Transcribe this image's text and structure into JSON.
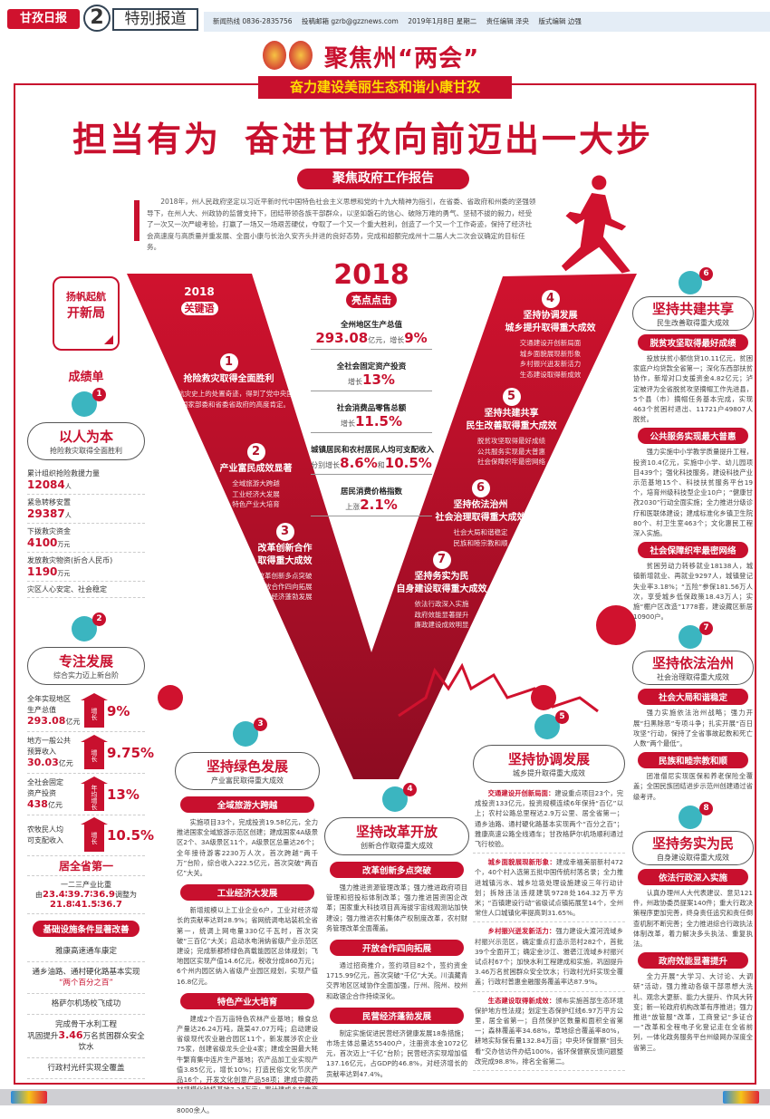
{
  "header": {
    "logo": "甘孜日报",
    "page_number": "2",
    "section": "特别报道",
    "hotline": "新闻热线 0836-2835756",
    "email": "投稿邮箱 gzrb@gzznews.com",
    "date": "2019年1月8日 星期二",
    "editor": "责任编辑 泽央",
    "layout_editor": "版式编辑 边强"
  },
  "masthead": {
    "title": "聚焦州“两会”",
    "subtitle": "奋力建设美丽生态和谐小康甘孜"
  },
  "headline": {
    "part1": "担当有为",
    "part2": "奋进甘孜向前迈出一大步"
  },
  "report": {
    "label": "聚焦政府工作报告",
    "intro": "2018年，州人民政府坚定以习近平新时代中国特色社会主义思想和党的十九大精神为指引，在省委、省政府和州委的坚强领导下，在州人大、州政协的监督支持下，团结带领各族干部群众，以坚如磐石的信心、破除万难的勇气、坚韧不拔的毅力，经受了一次又一次严峻考验，打赢了一场又一场艰苦硬仗，夺取了一个又一个重大胜利，创造了一个又一个工作奇迹，保持了经济社会高速度与高质量并重发展、全面小康与长治久安齐头并进的良好态势，完成和超额完成州十二届人大二次会议确定的目标任务。"
  },
  "keywords": {
    "year": "2018",
    "label": "关键语",
    "items": [
      {
        "num": "1",
        "title": "抢险救灾取得全面胜利",
        "desc": "创造了抗灾史上的处置奇迹，得到了党中央国务院、国家部委和省委省政府的高度肯定。"
      },
      {
        "num": "2",
        "title": "产业富民成效显著",
        "desc": "全域旅游大跨越\n工业经济大发展\n特色产业大培育"
      },
      {
        "num": "3",
        "title": "改革创新合作\n取得重大成效",
        "desc": "改革创新多点突破\n开放合作四向拓展\n民营经济蓬勃发展"
      },
      {
        "num": "4",
        "title": "坚持协调发展\n城乡提升取得重大成效",
        "desc": "交通建设开创新局面\n城乡面貌展现新形象\n乡村振兴迸发新活力\n生态建设取得新成效"
      },
      {
        "num": "5",
        "title": "坚持共建共享\n民生改善取得重大成效",
        "desc": "脱贫攻坚取得最好成绩\n公共服务实现最大普惠\n社会保障织牢最密网络"
      },
      {
        "num": "6",
        "title": "坚持依法治州\n社会治理取得重大成效",
        "desc": "社会大局和谐稳定\n民族和睦宗教和顺"
      },
      {
        "num": "7",
        "title": "坚持务实为民\n自身建设取得重大成效",
        "desc": "依法行政深入实施\n政府效能显著提升\n廉政建设成效明显"
      }
    ]
  },
  "highlights": {
    "year": "2018",
    "label": "亮点点击",
    "items": [
      {
        "label": "全州地区生产总值",
        "pre": "",
        "v1": "293.08",
        "mid": "亿元，增长",
        "v2": "9%"
      },
      {
        "label": "全社会固定资产投资",
        "pre": "增长",
        "v1": "13%",
        "mid": "",
        "v2": ""
      },
      {
        "label": "社会消费品零售总额",
        "pre": "增长",
        "v1": "11.5%",
        "mid": "",
        "v2": ""
      },
      {
        "label": "城镇居民和农村居民人均可支配收入",
        "pre": "分别增长",
        "v1": "8.6%",
        "mid": "和",
        "v2": "10.5%"
      },
      {
        "label": "居民消费价格指数",
        "pre": "上涨",
        "v1": "2.1%",
        "mid": "",
        "v2": ""
      }
    ]
  },
  "left": {
    "launch_l1": "扬帆起航",
    "launch_l2": "开新局",
    "achievements": "成绩单",
    "block1": {
      "badge": "1",
      "title": "以人为本",
      "subtitle": "抢险救灾取得全面胜利",
      "stats": [
        {
          "label": "累计组织抢险救援力量",
          "value": "12084",
          "unit": "人"
        },
        {
          "label": "紧急转移安置",
          "value": "29387",
          "unit": "人"
        },
        {
          "label": "下拨救灾资金",
          "value": "4100",
          "unit": "万元"
        },
        {
          "label": "发放救灾物资(折合人民币)",
          "value": "1190",
          "unit": "万元"
        },
        {
          "label": "灾区人心安定、社会稳定",
          "value": "",
          "unit": ""
        }
      ]
    },
    "block2": {
      "badge": "2",
      "title": "专注发展",
      "subtitle": "综合实力迈上新台阶",
      "growth": [
        {
          "l1": "全年实现地区",
          "l2": "生产总值",
          "value": "293.08",
          "unit": "亿元",
          "arrow": "增长",
          "pct": "9%"
        },
        {
          "l1": "地方一般公共",
          "l2": "预算收入",
          "value": "30.03",
          "unit": "亿元",
          "arrow": "增长",
          "pct": "9.75%"
        },
        {
          "l1": "全社会固定",
          "l2": "资产投资",
          "value": "438",
          "unit": "亿元",
          "arrow": "年均增长",
          "pct": "13%"
        },
        {
          "l1": "农牧民人均",
          "l2": "可支配收入",
          "value": "",
          "unit": "",
          "arrow": "增长",
          "pct": "10.5%"
        }
      ],
      "rank": "居全省第一",
      "ratio_label": "一二三产业比重",
      "ratio_from_pre": "由",
      "ratio_from": "23.4∶39.7∶36.9",
      "ratio_to_pre": "调整为",
      "ratio_to": "21.8∶41.5∶36.7"
    },
    "infra": {
      "heading": "基础设施条件显著改善",
      "items": [
        {
          "text": "雅康高速通车康定"
        },
        {
          "text": "通乡油路、通村硬化路基本实现",
          "quote": "“两个百分之百”"
        },
        {
          "text": "格萨尔机场校飞成功"
        },
        {
          "text": "完成骨干水利工程",
          "pre": "巩固提升",
          "value": "3.46",
          "post": "万名贫困群众安全饮水"
        },
        {
          "text": "行政村光纤实现全覆盖"
        }
      ]
    }
  },
  "sections": [
    {
      "id": "s3",
      "badge": "3",
      "title": "坚持绿色发展",
      "subtitle": "产业富民取得重大成效",
      "subs": [
        {
          "heading": "全域旅游大跨越",
          "text": "实施项目33个，完成投资19.58亿元，全力推进国家全域旅游示范区创建；建成国家4A级景区2个、3A级景区11个，A级景区总量达26个；全年接待游客2230万人次，首次跨越“两千万”台阶，综合收入222.5亿元，首次突破“两百亿”大关。"
        },
        {
          "heading": "工业经济大发展",
          "text": "新增规模以上工业企业6户，工业对经济增长的贡献率达到28.9%；省网统调电站装机全省第一，统调上网电量330亿千瓦时，首次突破“三百亿”大关；启动水电消纳省级产业示范区建设；完成新都桥绿色高载能园区总体规划；飞地园区实现产值14.6亿元，税收分成860万元；6个州内园区纳入省级产业园区规划，实现产值16.8亿元。"
        },
        {
          "heading": "特色产业大培育",
          "text": "建成2个百万亩特色农林产业基地；粮食总产量达26.24万吨，蔬菜47.07万吨；启动建设省级现代农业融合园区11个，新发展涉农企业75家，创建省级龙头企业4家；建成全国最大牦牛繁育集中连片生产基地；农产品加工业实现产值3.85亿元，增长10%；打造民俗文化节庆产品16个，开发文化创意产品58项；建成中藏药材规模化种植基地7.34万亩；累计建成乡村电商物流服务站（点）658个，电商从业人员达8000余人。"
        }
      ]
    },
    {
      "id": "s4",
      "badge": "4",
      "title": "坚持改革开放",
      "subtitle": "创新合作取得重大成效",
      "subs": [
        {
          "heading": "改革创新多点突破",
          "text": "强力推进资源管理改革；强力推进政府项目管理和招投标体制改革；强力推进国资国企改革；国家重大科技项目高海拔宇宙线观测站加快建设；强力推进农村集体产权制度改革，农村财务管理改革全面覆盖。"
        },
        {
          "heading": "开放合作四向拓展",
          "text": "通过招商推介，签约项目82个，签约资金1715.99亿元，首次突破“千亿”大关。川滇藏青交界地区区域协作全面加强，厅州、院州、校州和政银企合作持续深化。"
        },
        {
          "heading": "民营经济蓬勃发展",
          "text": "制定实施促进民营经济健康发展18条措施；市场主体总量达55400户，注册资本金1072亿元，首次迈上“千亿”台阶；民营经济实现增加值137.16亿元，占GDP的46.8%，对经济增长的贡献率达到47.4%。"
        }
      ]
    },
    {
      "id": "s5",
      "badge": "5",
      "title": "坚持协调发展",
      "subtitle": "城乡提升取得重大成效",
      "inline": true,
      "subs": [
        {
          "heading": "交通建设开创新局面：",
          "text": "建设重点项目23个，完成投资133亿元，投资规模连续6年保持“百亿”以上；农村公路总里程达2.9万公里、居全省第一；通乡油路、通村硬化路基本实现两个“百分之百”；雅康高速公路全线通车；甘孜格萨尔机场顺利通过飞行校验。"
        },
        {
          "heading": "城乡面貌展现新形象：",
          "text": "建成幸福美丽新村472个，40个村入选第五批中国传统村落名录；全力推进城镇污水、城乡垃圾处理设施建设三年行动计划；拆除违法违规建筑9728处164.32万平方米；“百镇建设行动”省级试点镇拓展至14个，全州常住人口城镇化率提高到31.65%。"
        },
        {
          "heading": "乡村振兴迸发新活力：",
          "text": "强力建设大渡河流域乡村振兴示范区，确定重点打造示范村282个，首批39个全面开工；确定金沙江、雅砻江流域乡村振兴试点村67个；加快水利工程建成和实施，巩固提升3.46万名贫困群众安全饮水；行政村光纤实现全覆盖；行政村普惠金融服务覆盖率达87.9%。"
        },
        {
          "heading": "生态建设取得新成效：",
          "text": "颁布实施首部生态环境保护地方性法规；划定生态保护红线6.97万平方公里，居全省第一；自然保护区数量和面积全省第一；森林覆盖率34.68%，草地综合覆盖率80%，耕地实际保有量132.84万亩；中央环保督察“回头看”交办信访件办结100%，省环保督察反馈问题整改完成98.8%，排名全省第二。"
        }
      ]
    },
    {
      "id": "s6",
      "badge": "6",
      "title": "坚持共建共享",
      "subtitle": "民生改善取得重大成效",
      "subs": [
        {
          "heading": "脱贫攻坚取得最好成绩",
          "text": "投放扶贫小额信贷10.11亿元，贫困家庭户均贷款全省第一；深化东西部扶贫协作，新增对口支援资金4.82亿元；泸定被评为全省脱贫攻坚摘帽工作先进县，5个县（市）摘帽任务基本完成，实现463个贫困村退出、11721户49807人脱贫。"
        },
        {
          "heading": "公共服务实现最大普惠",
          "text": "强力实施中小学教学质量提升工程，投资10.4亿元，实施中小学、幼儿园项目439个；强化科技服务，建设科技产业示范基地15个、科技扶贫服务平台19个，培育州级科技型企业10户；“健康甘孜2030”行动全面实施；全力推进分级诊疗和医联体建设；建成标准化乡镇卫生院80个、村卫生室463个；文化惠民工程深入实施。"
        },
        {
          "heading": "社会保障织牢最密网络",
          "text": "贫困劳动力转移就业18138人，城镇新增就业、再就业9297人，城镇登记失业率3.18%；“五险”参保181.56万人次，享受城乡低保政策18.43万人；实施“棚户区改造”1778套，建设藏区新居10900户。"
        }
      ]
    },
    {
      "id": "s7",
      "badge": "7",
      "title": "坚持依法治州",
      "subtitle": "社会治理取得重大成效",
      "subs": [
        {
          "heading": "社会大局和谐稳定",
          "text": "强力实施依法治州战略；强力开展“扫黑除恶”专项斗争；扎实开展“百日攻坚”行动，保持了全省事故起数和死亡人数“两个最低”。"
        },
        {
          "heading": "民族和睦宗教和顺",
          "text": "团准僧尼实现医保和养老保险全覆盖；全国民族团结进步示范州创建通过省级考评。"
        }
      ]
    },
    {
      "id": "s8",
      "badge": "8",
      "title": "坚持务实为民",
      "subtitle": "自身建设取得重大成效",
      "subs": [
        {
          "heading": "依法行政深入实施",
          "text": "认真办理州人大代表建议、意见121件，州政协委员提案140件；重大行政决策程序更加完善，终身责任追究和责任倒查机制不断完善；全力推进综合行政执法体制改革，着力解决多头执法、重复执法。"
        },
        {
          "heading": "政府效能显著提升",
          "text": "全力开展“大学习、大讨论、大调研”活动，强力推动各级干部思想大洗礼、观念大更新、能力大提升、作风大转变；新一轮政府机构改革有序推进；强力推进“放管服”改革，工商登记“多证合一”改革和全程电子化登记走在全省前列，一体化政务服务平台州级网办深度全省第三。"
        }
      ]
    }
  ],
  "colors": {
    "accent": "#c8102e",
    "icon": "#3bb5c0",
    "v_dark": "#9e0f26",
    "subtitle_text": "#ffde00"
  }
}
